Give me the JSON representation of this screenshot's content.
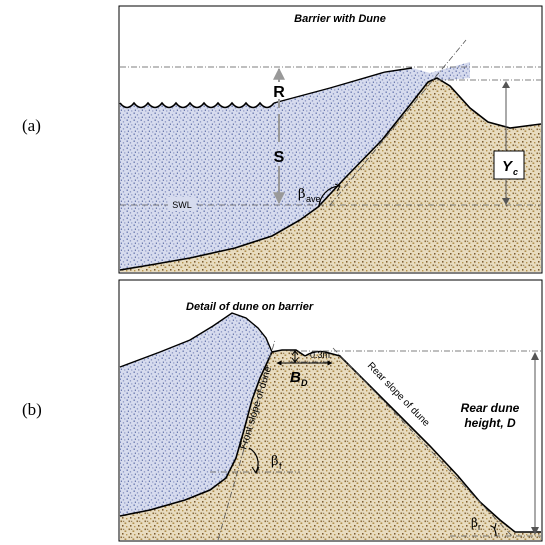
{
  "panel_a": {
    "label": "(a)",
    "title": "Barrier with Dune",
    "run_up_label": "R",
    "surge_label": "S",
    "swl_label": "SWL",
    "beta_label": "β",
    "beta_sub": "ave",
    "crest_label": "Y",
    "crest_sub": "c"
  },
  "panel_b": {
    "label": "(b)",
    "title": "Detail of dune on barrier",
    "offset_label": "0.3m",
    "berm_label": "B",
    "berm_sub": "D",
    "front_slope_label": "Front slope of dune",
    "rear_slope_label": "Rear slope of dune",
    "dune_height_line1": "Rear dune",
    "dune_height_line2": "height, D",
    "beta_f_label": "β",
    "beta_f_sub": "f",
    "beta_r_label": "β",
    "beta_r_sub": "r"
  },
  "colors": {
    "water": "#c9cfe6",
    "water_dot": "#6a79b0",
    "sand": "#e8dcc0",
    "sand_dot": "#8a6a38",
    "line": "#000000",
    "guide": "#555555",
    "arrow_grey": "#999999"
  }
}
